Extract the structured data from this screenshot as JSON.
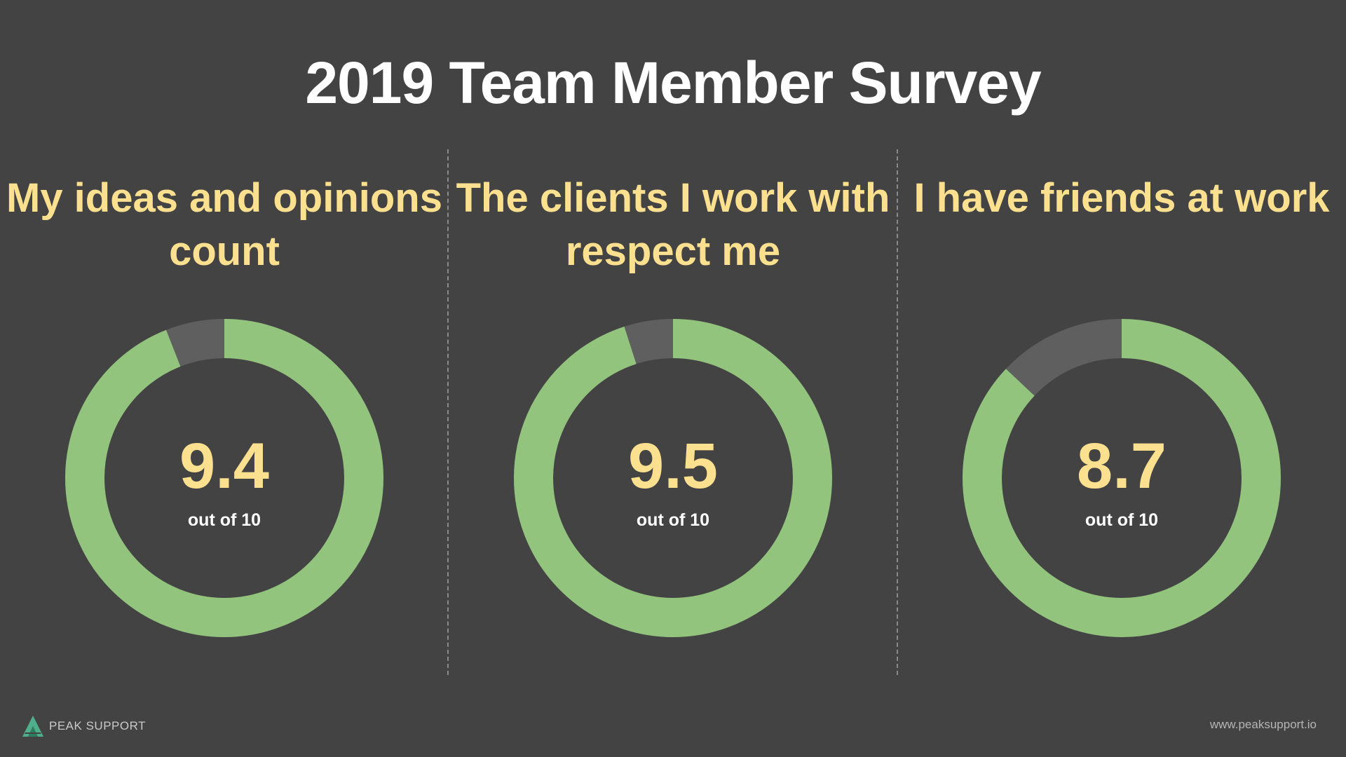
{
  "title": "2019 Team Member Survey",
  "colors": {
    "background": "#434343",
    "ring_fill": "#93c47d",
    "ring_remainder": "#5f5f5f",
    "heading": "#fbe08f",
    "score": "#fbe08f"
  },
  "chart_data": [
    {
      "type": "pie",
      "title": "My ideas and opinions count",
      "value": 9.4,
      "max": 10,
      "value_label": "9.4",
      "sublabel": "out of 10"
    },
    {
      "type": "pie",
      "title": "The clients I work with respect me",
      "value": 9.5,
      "max": 10,
      "value_label": "9.5",
      "sublabel": "out of 10"
    },
    {
      "type": "pie",
      "title": "I have friends at work",
      "value": 8.7,
      "max": 10,
      "value_label": "8.7",
      "sublabel": "out of 10"
    }
  ],
  "footer": {
    "brand": "PEAK SUPPORT",
    "logo_icon": "peak-mountain-icon",
    "url": "www.peaksupport.io"
  }
}
